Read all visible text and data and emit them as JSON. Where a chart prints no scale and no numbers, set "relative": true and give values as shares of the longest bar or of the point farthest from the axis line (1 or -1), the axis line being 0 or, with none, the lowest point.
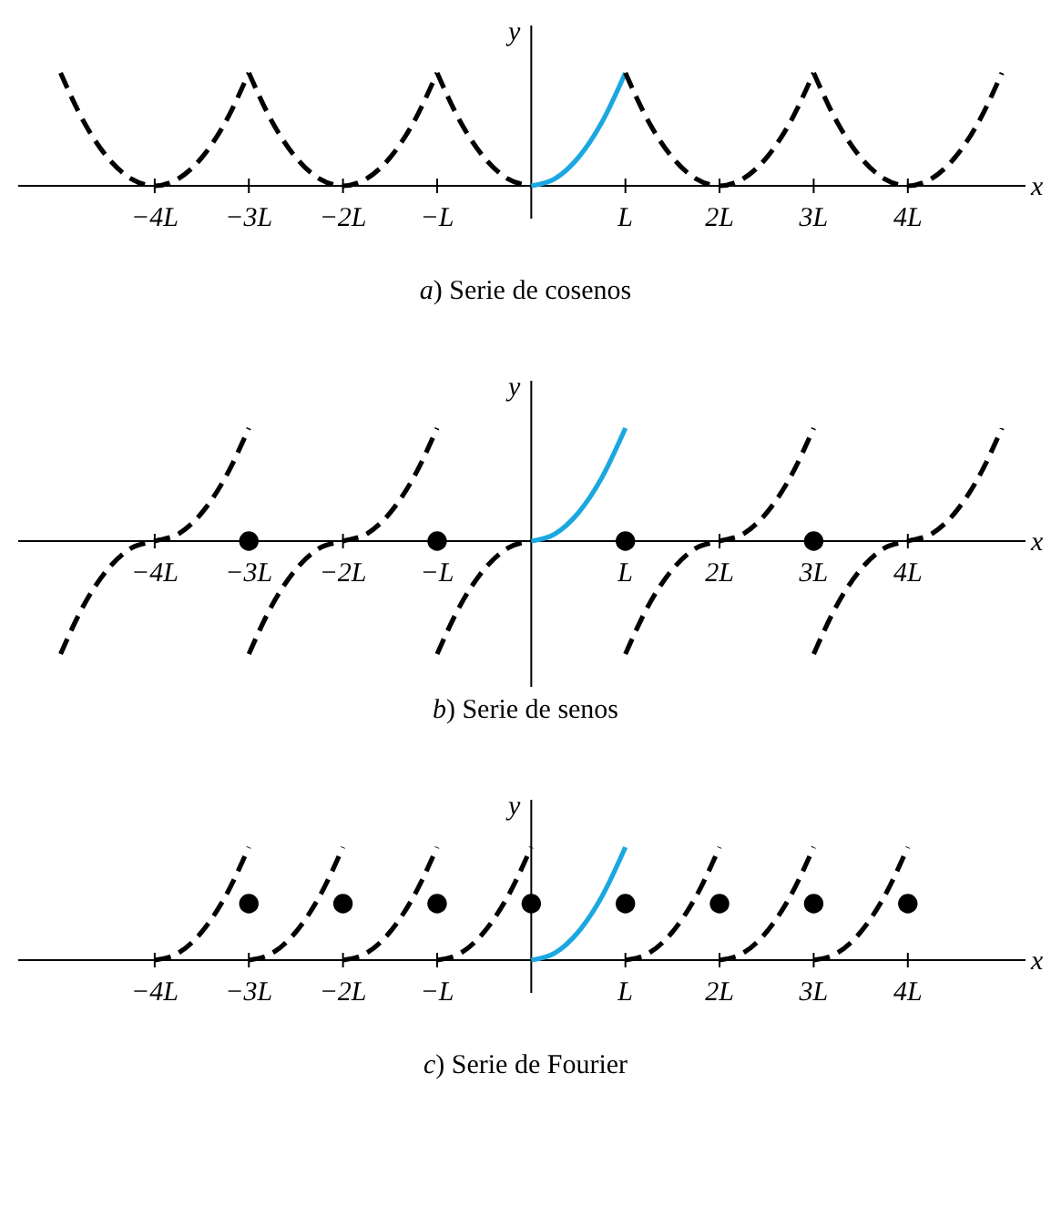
{
  "chart_data": [
    {
      "type": "line",
      "title": "a) Serie de cosenos",
      "xlabel": "x",
      "ylabel": "y",
      "relative": true,
      "xlim": [
        -5.45,
        5.25
      ],
      "xticks": [
        {
          "value": -4,
          "label": "−4L"
        },
        {
          "value": -3,
          "label": "−3L"
        },
        {
          "value": -2,
          "label": "−2L"
        },
        {
          "value": -1,
          "label": "−L"
        },
        {
          "value": 1,
          "label": "L"
        },
        {
          "value": 2,
          "label": "2L"
        },
        {
          "value": 3,
          "label": "3L"
        },
        {
          "value": 4,
          "label": "4L"
        }
      ],
      "series": [
        {
          "color": "#000000",
          "line_style": "dashed",
          "x": [
            -5,
            -4.75,
            -4.5,
            -4.25,
            -4,
            -3.75,
            -3.5,
            -3.25,
            -3
          ],
          "values": [
            1,
            0.5625,
            0.25,
            0.0625,
            0,
            0.0625,
            0.25,
            0.5625,
            1
          ]
        },
        {
          "color": "#000000",
          "line_style": "dashed",
          "x": [
            -3,
            -2.75,
            -2.5,
            -2.25,
            -2,
            -1.75,
            -1.5,
            -1.25,
            -1
          ],
          "values": [
            1,
            0.5625,
            0.25,
            0.0625,
            0,
            0.0625,
            0.25,
            0.5625,
            1
          ]
        },
        {
          "color": "#000000",
          "line_style": "dashed",
          "x": [
            -1,
            -0.75,
            -0.5,
            -0.25,
            0
          ],
          "values": [
            1,
            0.5625,
            0.25,
            0.0625,
            0
          ]
        },
        {
          "color": "#1ba7e0",
          "line_style": "solid",
          "x": [
            0,
            0.25,
            0.5,
            0.75,
            1
          ],
          "values": [
            0,
            0.0625,
            0.25,
            0.5625,
            1
          ]
        },
        {
          "color": "#000000",
          "line_style": "dashed",
          "x": [
            1,
            1.25,
            1.5,
            1.75,
            2,
            2.25,
            2.5,
            2.75,
            3
          ],
          "values": [
            1,
            0.5625,
            0.25,
            0.0625,
            0,
            0.0625,
            0.25,
            0.5625,
            1
          ]
        },
        {
          "color": "#000000",
          "line_style": "dashed",
          "x": [
            3,
            3.25,
            3.5,
            3.75,
            4,
            4.25,
            4.5,
            4.75,
            5
          ],
          "values": [
            1,
            0.5625,
            0.25,
            0.0625,
            0,
            0.0625,
            0.25,
            0.5625,
            1
          ]
        }
      ]
    },
    {
      "type": "line",
      "title": "b) Serie de senos",
      "xlabel": "x",
      "ylabel": "y",
      "relative": true,
      "xlim": [
        -5.45,
        5.25
      ],
      "xticks": [
        {
          "value": -4,
          "label": "−4L"
        },
        {
          "value": -3,
          "label": "−3L"
        },
        {
          "value": -2,
          "label": "−2L"
        },
        {
          "value": -1,
          "label": "−L"
        },
        {
          "value": 1,
          "label": "L"
        },
        {
          "value": 2,
          "label": "2L"
        },
        {
          "value": 3,
          "label": "3L"
        },
        {
          "value": 4,
          "label": "4L"
        }
      ],
      "series": [
        {
          "color": "#000000",
          "line_style": "dashed",
          "x": [
            -5,
            -4.75,
            -4.5,
            -4.25,
            -4,
            -3.75,
            -3.5,
            -3.25,
            -3
          ],
          "values": [
            -1,
            -0.5625,
            -0.25,
            -0.0625,
            0,
            0.0625,
            0.25,
            0.5625,
            1
          ]
        },
        {
          "color": "#000000",
          "line_style": "dashed",
          "x": [
            -3,
            -2.75,
            -2.5,
            -2.25,
            -2,
            -1.75,
            -1.5,
            -1.25,
            -1
          ],
          "values": [
            -1,
            -0.5625,
            -0.25,
            -0.0625,
            0,
            0.0625,
            0.25,
            0.5625,
            1
          ]
        },
        {
          "color": "#000000",
          "line_style": "dashed",
          "x": [
            -1,
            -0.75,
            -0.5,
            -0.25,
            0
          ],
          "values": [
            -1,
            -0.5625,
            -0.25,
            -0.0625,
            0
          ]
        },
        {
          "color": "#1ba7e0",
          "line_style": "solid",
          "x": [
            0,
            0.25,
            0.5,
            0.75,
            1
          ],
          "values": [
            0,
            0.0625,
            0.25,
            0.5625,
            1
          ]
        },
        {
          "color": "#000000",
          "line_style": "dashed",
          "x": [
            1,
            1.25,
            1.5,
            1.75,
            2,
            2.25,
            2.5,
            2.75,
            3
          ],
          "values": [
            -1,
            -0.5625,
            -0.25,
            -0.0625,
            0,
            0.0625,
            0.25,
            0.5625,
            1
          ]
        },
        {
          "color": "#000000",
          "line_style": "dashed",
          "x": [
            3,
            3.25,
            3.5,
            3.75,
            4,
            4.25,
            4.5,
            4.75,
            5
          ],
          "values": [
            -1,
            -0.5625,
            -0.25,
            -0.0625,
            0,
            0.0625,
            0.25,
            0.5625,
            1
          ]
        },
        {
          "type": "scatter",
          "marker": "circle",
          "color": "#000000",
          "x": [
            -3,
            -1,
            1,
            3
          ],
          "values": [
            0,
            0,
            0,
            0
          ]
        }
      ]
    },
    {
      "type": "line",
      "title": "c) Serie de Fourier",
      "xlabel": "x",
      "ylabel": "y",
      "relative": true,
      "xlim": [
        -5.45,
        5.25
      ],
      "xticks": [
        {
          "value": -4,
          "label": "−4L"
        },
        {
          "value": -3,
          "label": "−3L"
        },
        {
          "value": -2,
          "label": "−2L"
        },
        {
          "value": -1,
          "label": "−L"
        },
        {
          "value": 1,
          "label": "L"
        },
        {
          "value": 2,
          "label": "2L"
        },
        {
          "value": 3,
          "label": "3L"
        },
        {
          "value": 4,
          "label": "4L"
        }
      ],
      "series": [
        {
          "color": "#000000",
          "line_style": "dashed",
          "x": [
            -4,
            -3.75,
            -3.5,
            -3.25,
            -3
          ],
          "values": [
            0,
            0.0625,
            0.25,
            0.5625,
            1
          ]
        },
        {
          "color": "#000000",
          "line_style": "dashed",
          "x": [
            -3,
            -2.75,
            -2.5,
            -2.25,
            -2
          ],
          "values": [
            0,
            0.0625,
            0.25,
            0.5625,
            1
          ]
        },
        {
          "color": "#000000",
          "line_style": "dashed",
          "x": [
            -2,
            -1.75,
            -1.5,
            -1.25,
            -1
          ],
          "values": [
            0,
            0.0625,
            0.25,
            0.5625,
            1
          ]
        },
        {
          "color": "#000000",
          "line_style": "dashed",
          "x": [
            -1,
            -0.75,
            -0.5,
            -0.25,
            0
          ],
          "values": [
            0,
            0.0625,
            0.25,
            0.5625,
            1
          ]
        },
        {
          "color": "#1ba7e0",
          "line_style": "solid",
          "x": [
            0,
            0.25,
            0.5,
            0.75,
            1
          ],
          "values": [
            0,
            0.0625,
            0.25,
            0.5625,
            1
          ]
        },
        {
          "color": "#000000",
          "line_style": "dashed",
          "x": [
            1,
            1.25,
            1.5,
            1.75,
            2
          ],
          "values": [
            0,
            0.0625,
            0.25,
            0.5625,
            1
          ]
        },
        {
          "color": "#000000",
          "line_style": "dashed",
          "x": [
            2,
            2.25,
            2.5,
            2.75,
            3
          ],
          "values": [
            0,
            0.0625,
            0.25,
            0.5625,
            1
          ]
        },
        {
          "color": "#000000",
          "line_style": "dashed",
          "x": [
            3,
            3.25,
            3.5,
            3.75,
            4
          ],
          "values": [
            0,
            0.0625,
            0.25,
            0.5625,
            1
          ]
        },
        {
          "type": "scatter",
          "marker": "circle",
          "color": "#000000",
          "x": [
            -3,
            -2,
            -1,
            0,
            1,
            2,
            3,
            4
          ],
          "values": [
            0.5,
            0.5,
            0.5,
            0.5,
            0.5,
            0.5,
            0.5,
            0.5
          ]
        }
      ]
    }
  ]
}
